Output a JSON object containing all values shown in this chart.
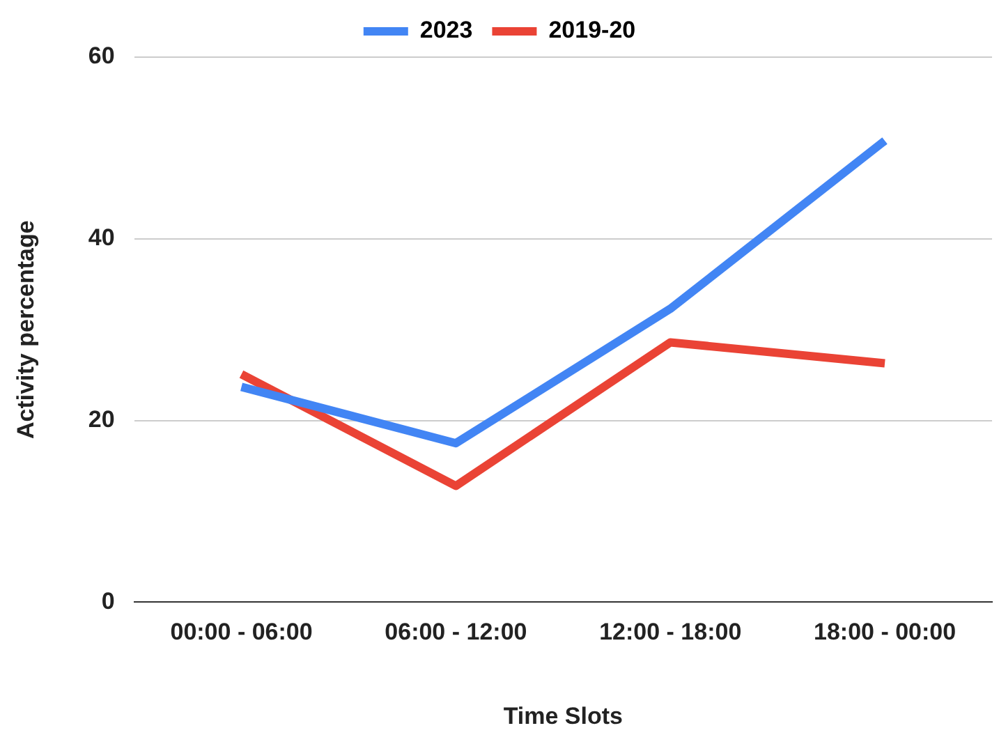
{
  "chart_data": {
    "type": "line",
    "xlabel": "Time Slots",
    "ylabel": "Activity percentage",
    "categories": [
      "00:00 - 06:00",
      "06:00 - 12:00",
      "12:00 - 18:00",
      "18:00 - 00:00"
    ],
    "series": [
      {
        "name": "2023",
        "color": "#4285f4",
        "values": [
          23.7,
          17.5,
          32.3,
          50.8
        ]
      },
      {
        "name": "2019-20",
        "color": "#ea4335",
        "values": [
          25.1,
          12.8,
          28.6,
          26.3
        ]
      }
    ],
    "ylim": [
      0,
      60
    ],
    "yticks": [
      0,
      20,
      40,
      60
    ],
    "grid": "y",
    "legend": "top",
    "marker": "none",
    "line_style": "solid"
  }
}
